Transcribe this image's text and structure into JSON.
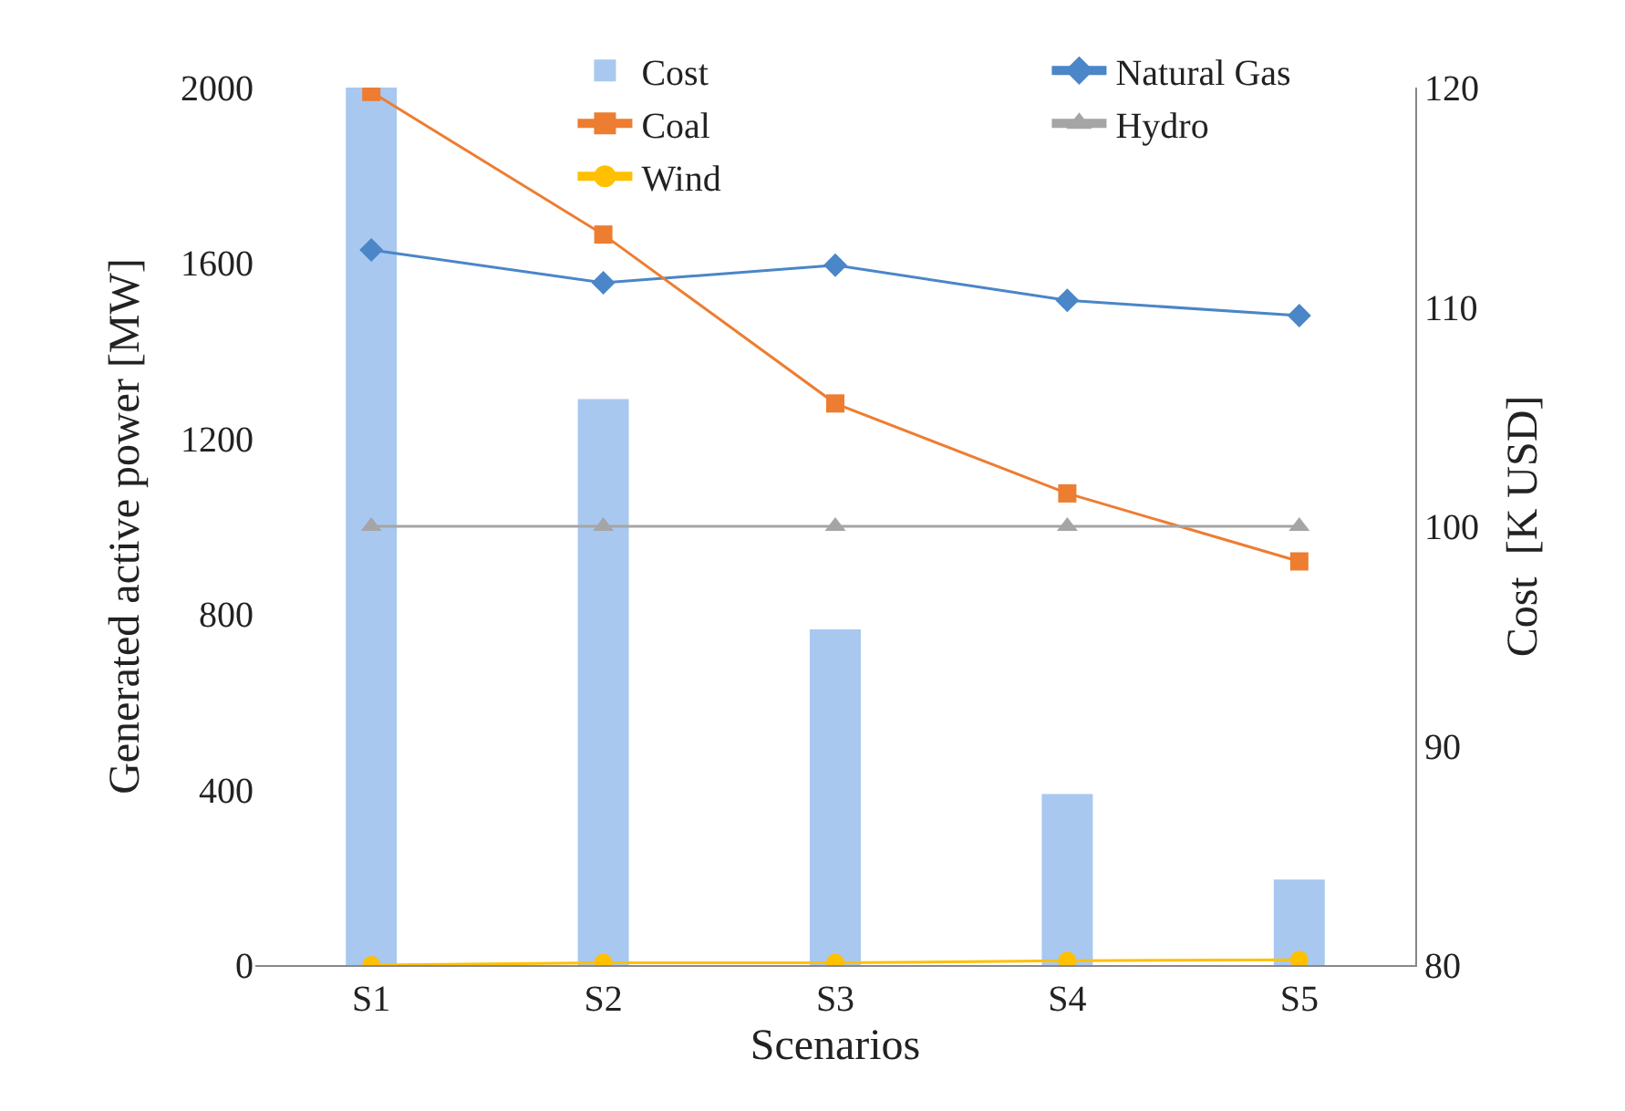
{
  "chart_data": {
    "type": "line",
    "xlabel": "Scenarios",
    "ylabel": "Generated active power [MW]",
    "y2label": "Cost  [K USD]",
    "categories": [
      "S1",
      "S2",
      "S3",
      "S4",
      "S5"
    ],
    "series": [
      {
        "name": "Cost",
        "type": "bar",
        "axis": "y2",
        "color": "#a9c8f0",
        "values": [
          120,
          105.8,
          95.3,
          87.8,
          83.9
        ]
      },
      {
        "name": "Natural Gas",
        "color": "#4a86c8",
        "marker": "diamond",
        "values": [
          1630,
          1555,
          1595,
          1515,
          1480
        ]
      },
      {
        "name": "Coal",
        "color": "#ed7d31",
        "marker": "square",
        "values": [
          1990,
          1665,
          1280,
          1075,
          920
        ]
      },
      {
        "name": "Hydro",
        "color": "#a5a5a5",
        "marker": "triangle",
        "values": [
          1000,
          1000,
          1000,
          1000,
          1000
        ]
      },
      {
        "name": "Wind",
        "color": "#ffc000",
        "marker": "circle",
        "values": [
          0,
          5,
          5,
          10,
          12
        ]
      }
    ],
    "ylim": [
      0,
      2000
    ],
    "yticks": [
      0,
      400,
      800,
      1200,
      1600,
      2000
    ],
    "y2lim": [
      80,
      120
    ],
    "y2ticks": [
      80,
      90,
      100,
      110,
      120
    ],
    "legend": "top",
    "grid": false
  }
}
